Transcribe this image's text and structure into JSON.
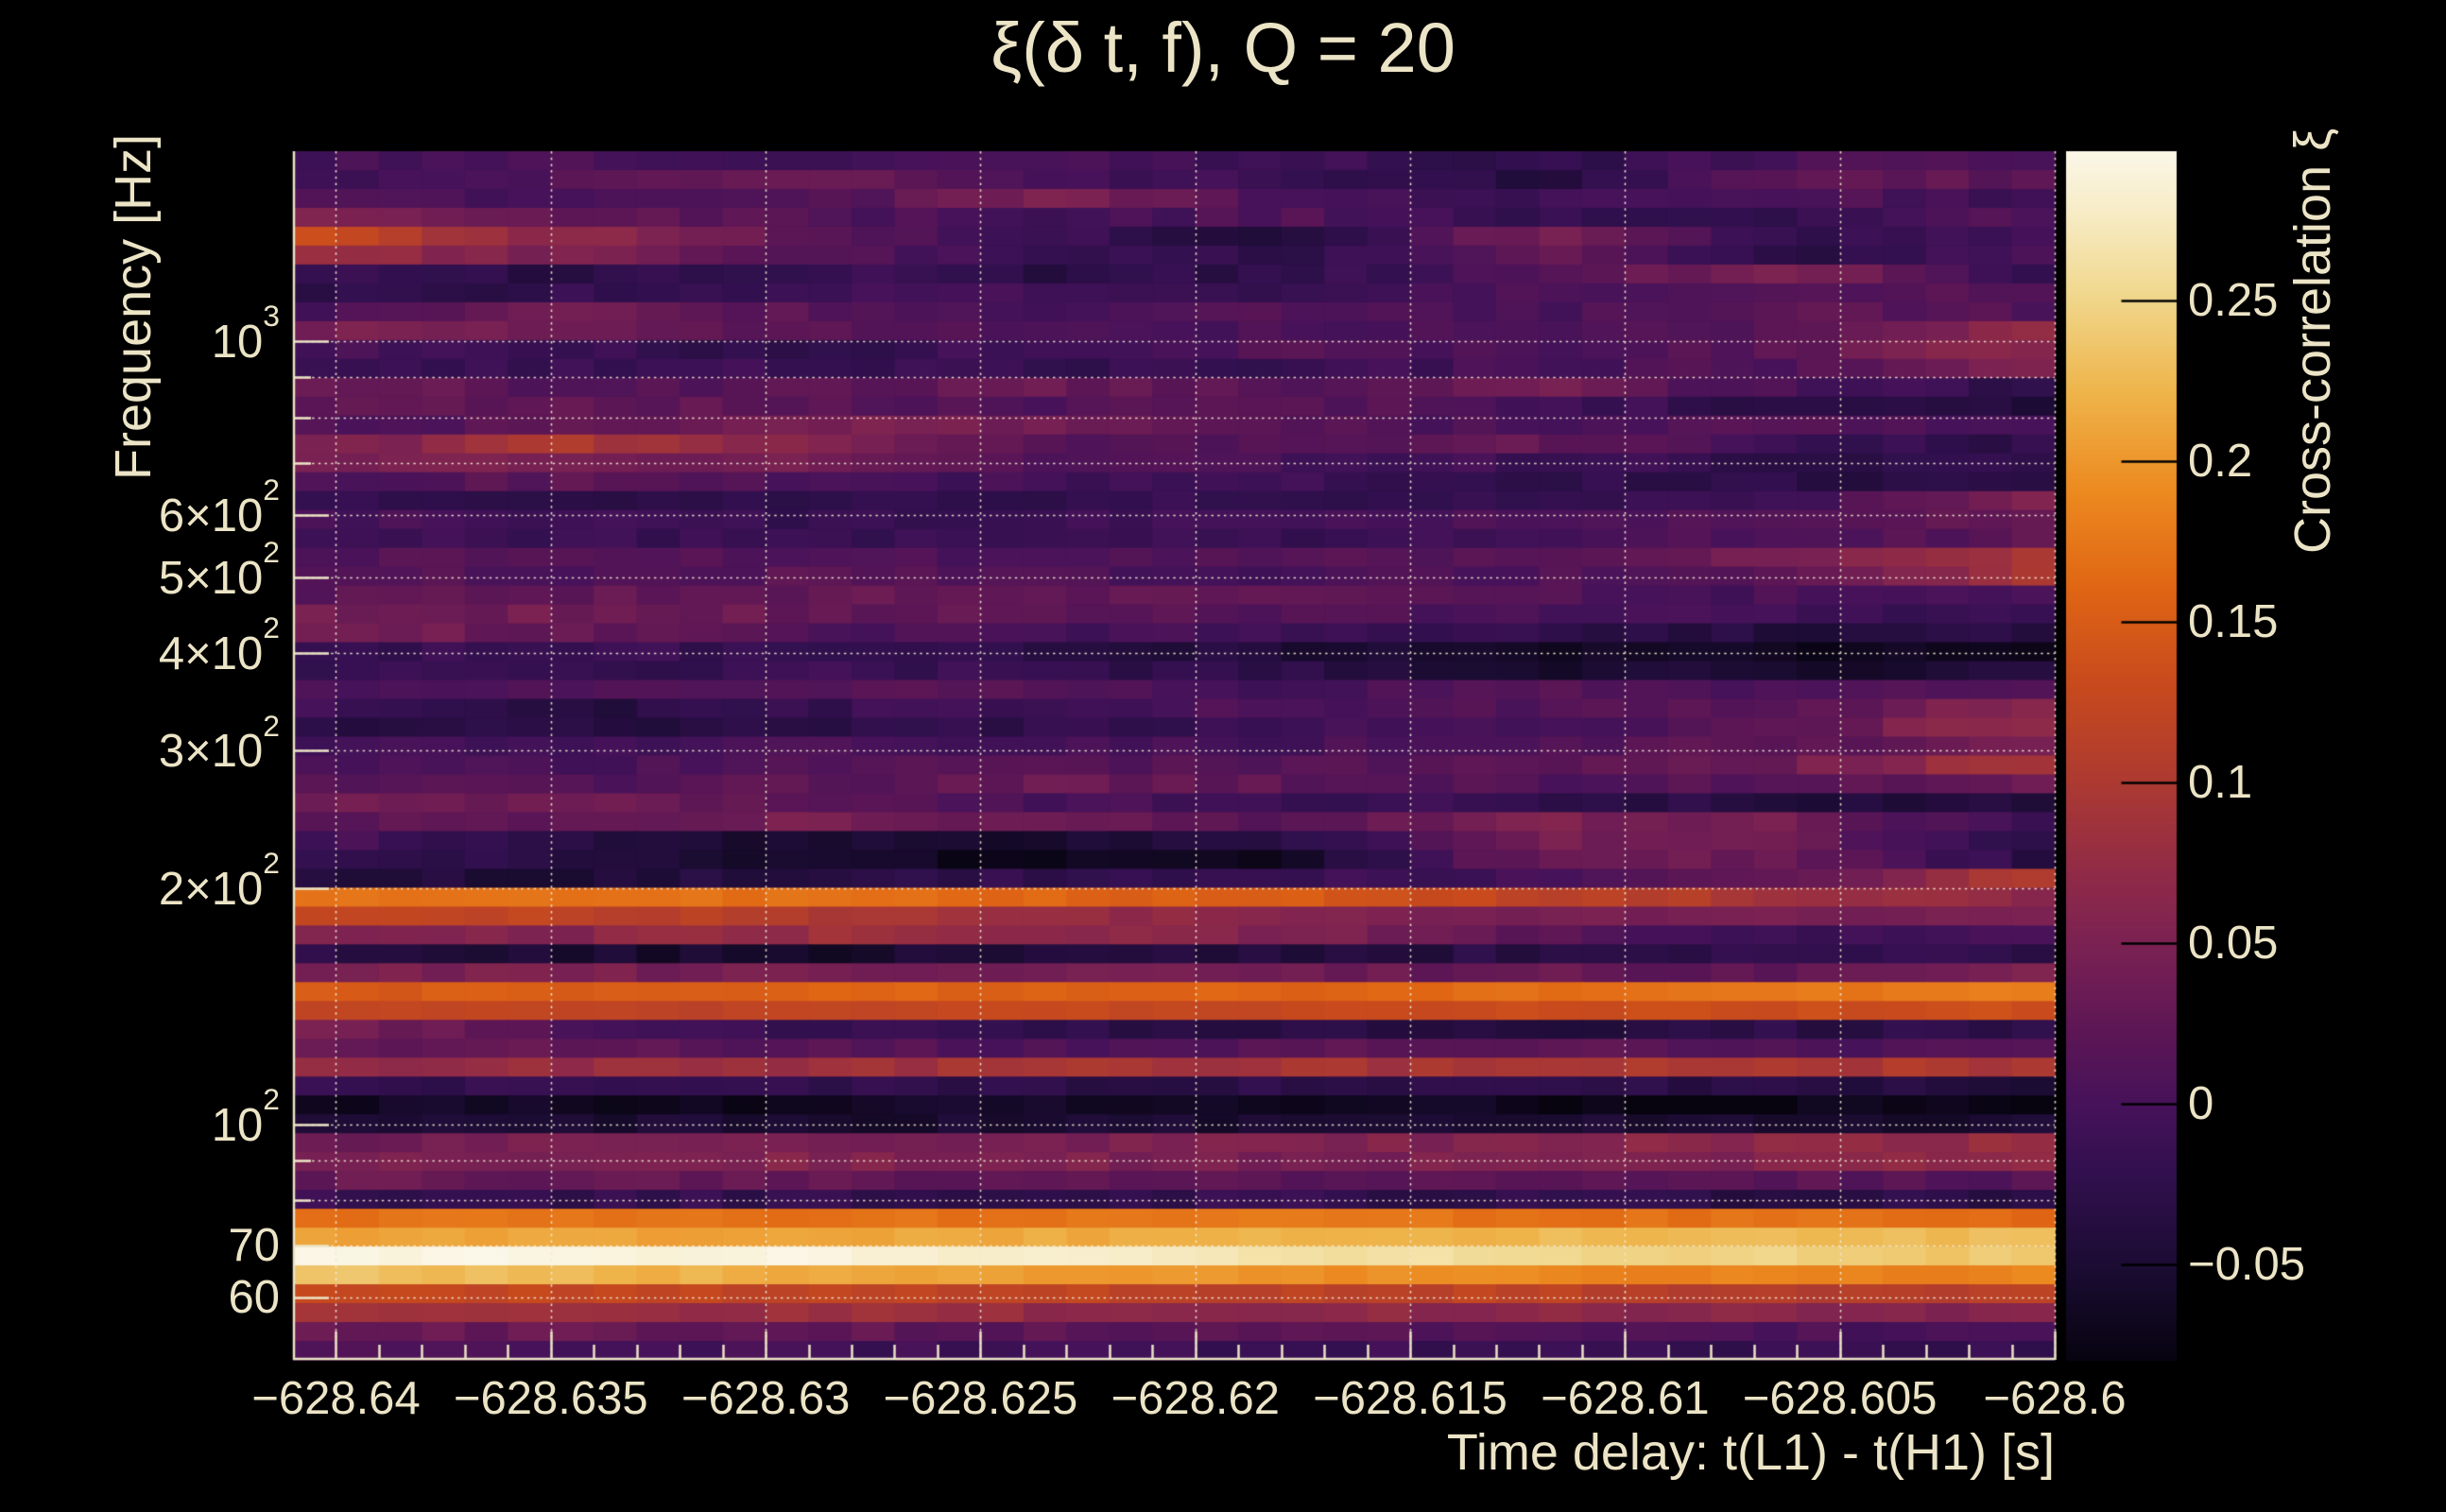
{
  "title": "ξ(δ t, f), Q = 20",
  "colors": {
    "background": "#000000",
    "text": "#ece4c6",
    "gridline": "#f2ead2",
    "colorbar_tick": "#000000"
  },
  "chart_data": {
    "type": "heatmap",
    "title": "ξ(δ t, f), Q = 20",
    "xlabel": "Time delay: t(L1) - t(H1) [s]",
    "ylabel": "Frequency [Hz]",
    "colorbar_label": "Cross-correlation ξ",
    "x": {
      "min": -628.641,
      "max": -628.6,
      "minor_step": 0.001,
      "major_ticks": [
        -628.64,
        -628.635,
        -628.63,
        -628.625,
        -628.62,
        -628.615,
        -628.61,
        -628.605,
        -628.6
      ],
      "tick_labels": [
        "−628.64",
        "−628.635",
        "−628.63",
        "−628.625",
        "−628.62",
        "−628.615",
        "−628.61",
        "−628.605",
        "−628.6"
      ]
    },
    "y": {
      "scale": "log",
      "min": 50,
      "max": 1750,
      "labeled_ticks": [
        {
          "v": 1000,
          "m": "10",
          "e": "3"
        },
        {
          "v": 600,
          "m": "6×10",
          "e": "2"
        },
        {
          "v": 500,
          "m": "5×10",
          "e": "2"
        },
        {
          "v": 400,
          "m": "4×10",
          "e": "2"
        },
        {
          "v": 300,
          "m": "3×10",
          "e": "2"
        },
        {
          "v": 200,
          "m": "2×10",
          "e": "2"
        },
        {
          "v": 100,
          "m": "10",
          "e": "2"
        },
        {
          "v": 70,
          "m": "70",
          "e": ""
        },
        {
          "v": 60,
          "m": "60",
          "e": ""
        }
      ],
      "minor_ticks": [
        900,
        800,
        700,
        90,
        80
      ],
      "gridline_values": [
        1000,
        900,
        800,
        700,
        600,
        500,
        400,
        300,
        200,
        100,
        90,
        80,
        70,
        60
      ]
    },
    "z": {
      "vmin": -0.0797,
      "vmax": 0.2965,
      "ticks": [
        {
          "v": 0.25,
          "label": "0.25"
        },
        {
          "v": 0.2,
          "label": "0.2"
        },
        {
          "v": 0.15,
          "label": "0.15"
        },
        {
          "v": 0.1,
          "label": "0.1"
        },
        {
          "v": 0.05,
          "label": "0.05"
        },
        {
          "v": 0,
          "label": "0"
        },
        {
          "v": -0.05,
          "label": "−0.05"
        }
      ]
    },
    "colormap": {
      "stops": [
        {
          "t": 0.0,
          "hex": "#070410"
        },
        {
          "t": 0.08,
          "hex": "#1c0c34"
        },
        {
          "t": 0.16,
          "hex": "#331050"
        },
        {
          "t": 0.21,
          "hex": "#46125a"
        },
        {
          "t": 0.27,
          "hex": "#5c1655"
        },
        {
          "t": 0.34,
          "hex": "#792153"
        },
        {
          "t": 0.4,
          "hex": "#8f2a48"
        },
        {
          "t": 0.48,
          "hex": "#ad3a31"
        },
        {
          "t": 0.56,
          "hex": "#c84a1d"
        },
        {
          "t": 0.64,
          "hex": "#e06614"
        },
        {
          "t": 0.72,
          "hex": "#ec8a20"
        },
        {
          "t": 0.8,
          "hex": "#eeb44a"
        },
        {
          "t": 0.88,
          "hex": "#f0d78c"
        },
        {
          "t": 0.95,
          "hex": "#f7ecc6"
        },
        {
          "t": 1.0,
          "hex": "#fbf7e8"
        }
      ]
    },
    "grid": {
      "n_cols": 41,
      "n_rows": 64,
      "note": "rows ordered top (1750 Hz) to bottom (50 Hz); 8 samples per row spanning left to right edge; values are cross-correlation ξ",
      "values": [
        [
          0.0,
          0.005,
          -0.005,
          0.0,
          -0.01,
          -0.025,
          0.005,
          0.0
        ],
        [
          -0.005,
          0.01,
          0.04,
          0.0,
          -0.01,
          -0.035,
          0.03,
          0.02
        ],
        [
          0.005,
          0.0,
          0.01,
          0.05,
          0.0,
          -0.01,
          0.01,
          -0.005
        ],
        [
          0.05,
          0.03,
          0.01,
          -0.005,
          0.01,
          -0.02,
          -0.02,
          0.01
        ],
        [
          0.13,
          0.07,
          0.02,
          -0.01,
          -0.045,
          0.05,
          -0.02,
          0.0
        ],
        [
          0.08,
          0.05,
          0.01,
          -0.01,
          -0.03,
          0.03,
          -0.03,
          -0.005
        ],
        [
          -0.02,
          -0.03,
          -0.01,
          -0.035,
          -0.02,
          0.01,
          0.06,
          -0.01
        ],
        [
          -0.03,
          -0.02,
          -0.01,
          0.0,
          -0.02,
          0.01,
          0.02,
          0.01
        ],
        [
          0.0,
          0.035,
          0.02,
          -0.005,
          0.01,
          0.0,
          0.025,
          0.01
        ],
        [
          0.045,
          0.04,
          0.02,
          0.01,
          0.0,
          0.01,
          0.02,
          0.07
        ],
        [
          0.005,
          -0.01,
          -0.025,
          0.0,
          0.01,
          0.0,
          0.02,
          0.07
        ],
        [
          -0.02,
          -0.015,
          -0.01,
          -0.02,
          -0.01,
          0.0,
          0.01,
          0.06
        ],
        [
          0.04,
          0.01,
          0.02,
          0.03,
          0.015,
          0.04,
          0.0,
          -0.025
        ],
        [
          0.02,
          0.025,
          0.02,
          0.01,
          0.02,
          0.0,
          -0.03,
          -0.04
        ],
        [
          0.01,
          0.02,
          0.05,
          0.04,
          0.015,
          0.0,
          0.015,
          -0.01
        ],
        [
          0.04,
          0.1,
          0.06,
          0.02,
          0.01,
          0.03,
          -0.01,
          -0.025
        ],
        [
          0.05,
          0.05,
          0.04,
          0.01,
          0.0,
          -0.01,
          -0.025,
          -0.03
        ],
        [
          0.01,
          0.02,
          0.0,
          -0.005,
          -0.01,
          -0.02,
          -0.03,
          -0.035
        ],
        [
          -0.025,
          -0.03,
          -0.02,
          -0.025,
          -0.015,
          -0.02,
          -0.01,
          0.05
        ],
        [
          0.0,
          -0.005,
          -0.02,
          -0.01,
          0.0,
          0.01,
          0.02,
          0.035
        ],
        [
          -0.015,
          -0.01,
          -0.02,
          -0.01,
          -0.015,
          0.0,
          0.01,
          0.02
        ],
        [
          0.01,
          0.02,
          0.01,
          0.0,
          0.01,
          0.02,
          0.05,
          0.09
        ],
        [
          0.015,
          0.01,
          0.02,
          0.005,
          0.0,
          0.01,
          0.02,
          0.09
        ],
        [
          0.02,
          0.025,
          0.03,
          0.03,
          0.02,
          0.01,
          0.0,
          0.01
        ],
        [
          0.04,
          0.04,
          0.03,
          0.02,
          0.01,
          0.0,
          -0.01,
          -0.01
        ],
        [
          0.045,
          0.03,
          0.01,
          0.0,
          -0.01,
          -0.02,
          -0.04,
          -0.03
        ],
        [
          -0.02,
          -0.01,
          -0.02,
          -0.03,
          -0.045,
          -0.06,
          -0.07,
          -0.065
        ],
        [
          -0.015,
          -0.02,
          -0.01,
          -0.02,
          -0.03,
          -0.05,
          -0.055,
          -0.04
        ],
        [
          0.01,
          0.005,
          0.015,
          0.01,
          0.0,
          0.01,
          0.0,
          0.02
        ],
        [
          0.0,
          -0.04,
          -0.02,
          0.0,
          0.005,
          0.01,
          0.02,
          0.06
        ],
        [
          -0.035,
          -0.03,
          -0.035,
          -0.02,
          -0.01,
          0.0,
          0.02,
          0.08
        ],
        [
          -0.005,
          -0.01,
          0.0,
          -0.005,
          0.0,
          0.01,
          0.02,
          0.05
        ],
        [
          0.01,
          0.0,
          0.01,
          0.02,
          0.01,
          0.02,
          0.04,
          0.1
        ],
        [
          0.015,
          0.01,
          0.02,
          0.03,
          0.02,
          0.01,
          0.02,
          0.03
        ],
        [
          0.04,
          0.035,
          0.02,
          0.0,
          -0.01,
          -0.02,
          -0.04,
          -0.035
        ],
        [
          0.025,
          0.03,
          0.045,
          0.03,
          0.02,
          0.05,
          0.04,
          -0.01
        ],
        [
          0.0,
          -0.03,
          -0.055,
          -0.05,
          -0.03,
          0.05,
          0.03,
          -0.02
        ],
        [
          -0.01,
          -0.03,
          -0.06,
          -0.07,
          -0.065,
          0.04,
          0.03,
          -0.03
        ],
        [
          -0.04,
          -0.045,
          -0.03,
          -0.02,
          -0.01,
          0.0,
          0.03,
          0.1
        ],
        [
          0.17,
          0.17,
          0.17,
          0.16,
          0.15,
          0.12,
          0.09,
          0.07
        ],
        [
          0.13,
          0.12,
          0.1,
          0.08,
          0.06,
          0.05,
          0.04,
          0.05
        ],
        [
          0.05,
          0.06,
          0.08,
          0.07,
          0.05,
          0.02,
          -0.01,
          0.01
        ],
        [
          -0.03,
          -0.05,
          -0.06,
          -0.04,
          -0.045,
          -0.03,
          -0.02,
          -0.025
        ],
        [
          0.045,
          0.05,
          0.04,
          0.04,
          0.035,
          0.03,
          0.025,
          0.045
        ],
        [
          0.15,
          0.15,
          0.155,
          0.16,
          0.16,
          0.17,
          0.175,
          0.18
        ],
        [
          0.12,
          0.12,
          0.12,
          0.125,
          0.13,
          0.13,
          0.135,
          0.135
        ],
        [
          0.05,
          0.01,
          -0.015,
          -0.025,
          -0.03,
          -0.035,
          -0.03,
          -0.03
        ],
        [
          0.03,
          0.025,
          0.015,
          0.01,
          0.015,
          0.02,
          0.01,
          0.005
        ],
        [
          0.08,
          0.08,
          0.085,
          0.09,
          0.09,
          0.095,
          0.1,
          0.1
        ],
        [
          -0.02,
          -0.025,
          -0.02,
          -0.025,
          -0.03,
          -0.03,
          -0.035,
          -0.04
        ],
        [
          -0.06,
          -0.065,
          -0.065,
          -0.06,
          -0.065,
          -0.07,
          -0.075,
          -0.078
        ],
        [
          -0.045,
          -0.05,
          -0.055,
          -0.05,
          -0.055,
          -0.05,
          -0.055,
          -0.05
        ],
        [
          0.04,
          0.045,
          0.04,
          0.05,
          0.05,
          0.06,
          0.065,
          0.075
        ],
        [
          0.05,
          0.05,
          0.055,
          0.05,
          0.045,
          0.05,
          0.06,
          0.07
        ],
        [
          0.03,
          0.03,
          0.025,
          0.02,
          0.02,
          0.025,
          0.02,
          0.015
        ],
        [
          -0.015,
          -0.02,
          -0.02,
          -0.025,
          -0.02,
          -0.025,
          -0.03,
          -0.03
        ],
        [
          0.17,
          0.175,
          0.17,
          0.17,
          0.175,
          0.17,
          0.17,
          0.165
        ],
        [
          0.205,
          0.21,
          0.21,
          0.215,
          0.22,
          0.225,
          0.23,
          0.225
        ],
        [
          0.295,
          0.295,
          0.29,
          0.28,
          0.265,
          0.255,
          0.245,
          0.235
        ],
        [
          0.235,
          0.225,
          0.215,
          0.205,
          0.195,
          0.19,
          0.185,
          0.185
        ],
        [
          0.125,
          0.125,
          0.12,
          0.12,
          0.115,
          0.115,
          0.11,
          0.11
        ],
        [
          0.085,
          0.08,
          0.08,
          0.075,
          0.07,
          0.065,
          0.06,
          0.055
        ],
        [
          0.035,
          0.03,
          0.025,
          0.02,
          0.015,
          0.01,
          0.005,
          0.0
        ],
        [
          0.005,
          0.0,
          -0.005,
          -0.01,
          -0.01,
          -0.015,
          -0.02,
          -0.02
        ]
      ]
    },
    "noise": {
      "amp_flat": 0.011,
      "amp_band": 0.006,
      "band_threshold": 0.12
    }
  }
}
